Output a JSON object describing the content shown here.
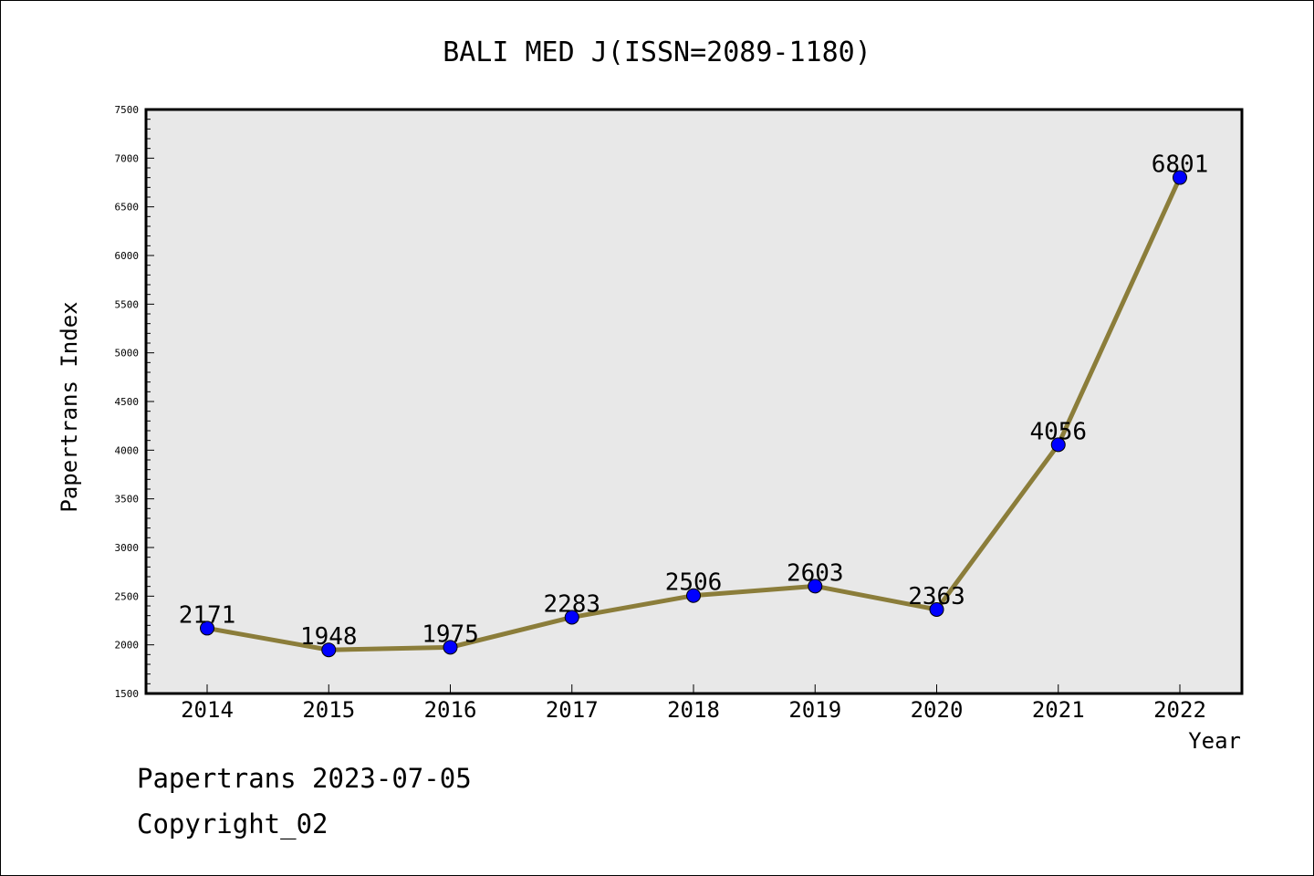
{
  "chart_data": {
    "type": "line",
    "title": "BALI MED J(ISSN=2089-1180)",
    "xlabel": "Year",
    "ylabel": "Papertrans Index",
    "ylim": [
      1500,
      7500
    ],
    "yticks": [
      1500,
      2000,
      2500,
      3000,
      3500,
      4000,
      4500,
      5000,
      5500,
      6000,
      6500,
      7000,
      7500
    ],
    "categories": [
      "2014",
      "2015",
      "2016",
      "2017",
      "2018",
      "2019",
      "2020",
      "2021",
      "2022"
    ],
    "series": [
      {
        "values": [
          2171,
          1948,
          1975,
          2283,
          2506,
          2603,
          2363,
          4056,
          6801
        ],
        "line_color": "#8b7d3a",
        "marker_color": "#0000ff"
      }
    ],
    "grid": false,
    "plot_background": "#e8e8e8"
  },
  "footer": {
    "date_line": "Papertrans 2023-07-05",
    "copyright": "Copyright_02"
  }
}
